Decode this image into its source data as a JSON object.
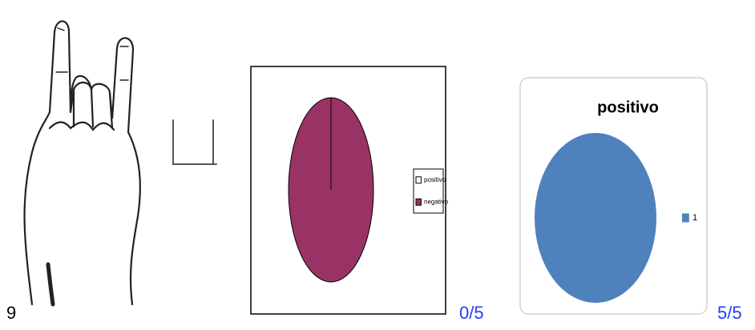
{
  "item_number": "9",
  "chart_data": [
    {
      "type": "pie",
      "categories": [
        "positivo",
        "negativo"
      ],
      "values": [
        0,
        5
      ],
      "colors": [
        "#ffffff",
        "#993366"
      ],
      "caption": "0/5"
    },
    {
      "type": "pie",
      "title": "positivo",
      "categories": [
        "1"
      ],
      "values": [
        5
      ],
      "colors": [
        "#4f81bd"
      ],
      "caption": "5/5"
    }
  ]
}
